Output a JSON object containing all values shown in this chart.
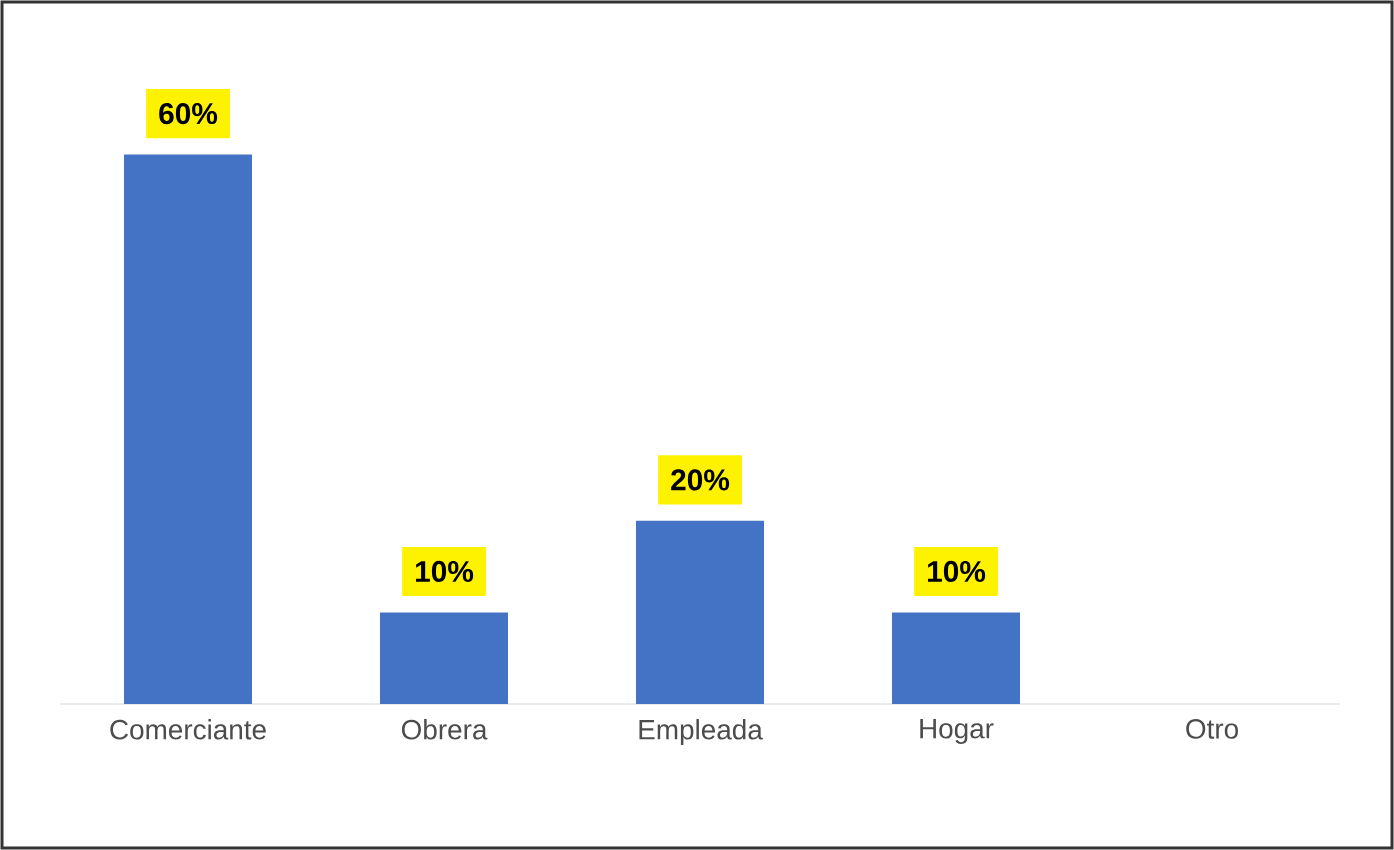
{
  "chart_data": {
    "type": "bar",
    "categories": [
      "Comerciante",
      "Obrera",
      "Empleada",
      "Hogar",
      "Otro"
    ],
    "values": [
      60,
      10,
      20,
      10,
      0
    ],
    "value_labels": [
      "60%",
      "10%",
      "20%",
      "10%",
      null
    ],
    "color": "#4472c4"
  }
}
